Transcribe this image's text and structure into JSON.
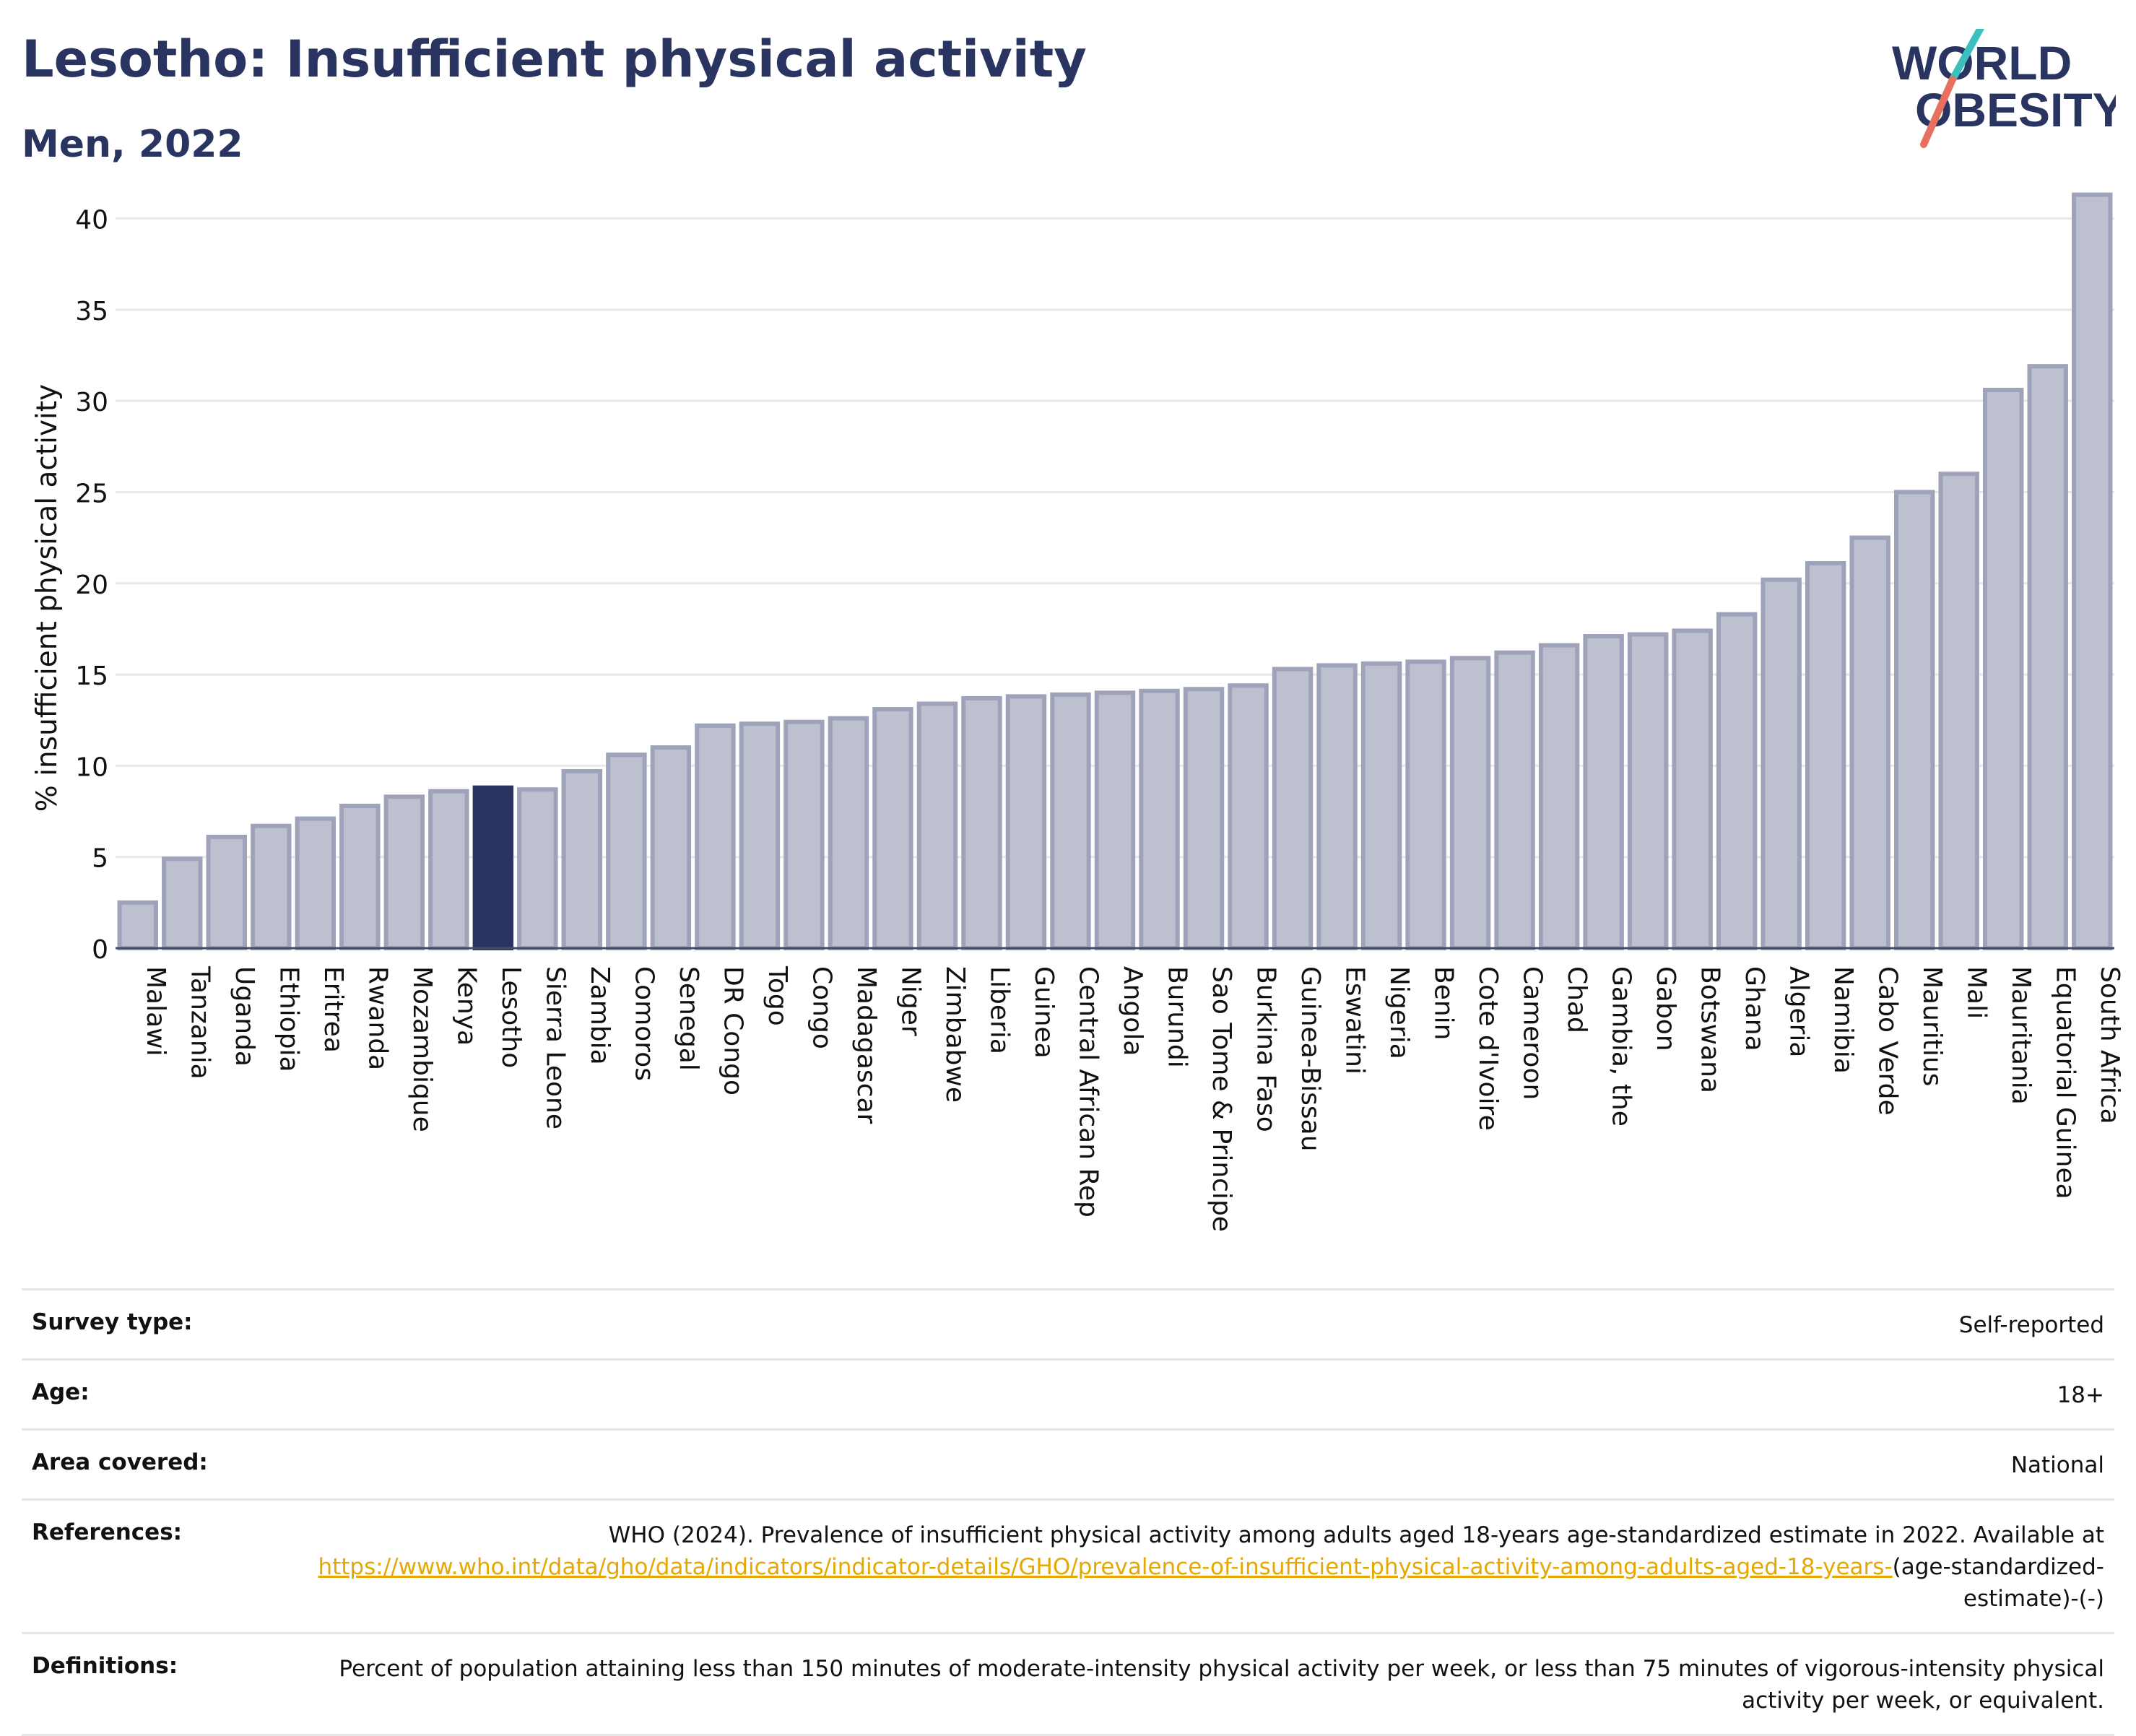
{
  "header": {
    "title": "Lesotho: Insufficient physical activity",
    "subtitle": "Men, 2022"
  },
  "logo": {
    "line1": "WORLD",
    "line2": "OBESITY"
  },
  "colors": {
    "title": "#2a3460",
    "bar": "#bcc0cf",
    "bar_stroke": "#9ea3ba",
    "highlight": "#2a3460",
    "link": "#e5a800",
    "logo_teal": "#3bbfbf",
    "logo_coral": "#e8705f"
  },
  "chart_data": {
    "type": "bar",
    "title": "Lesotho: Insufficient physical activity",
    "subtitle": "Men, 2022",
    "xlabel": "",
    "ylabel": "% insufficient physical activity",
    "ylim": [
      0,
      42
    ],
    "yticks": [
      0,
      5,
      10,
      15,
      20,
      25,
      30,
      35,
      40
    ],
    "grid": true,
    "legend": "none",
    "highlight": "Lesotho",
    "categories": [
      "Malawi",
      "Tanzania",
      "Uganda",
      "Ethiopia",
      "Eritrea",
      "Rwanda",
      "Mozambique",
      "Kenya",
      "Lesotho",
      "Sierra Leone",
      "Zambia",
      "Comoros",
      "Senegal",
      "DR Congo",
      "Togo",
      "Congo",
      "Madagascar",
      "Niger",
      "Zimbabwe",
      "Liberia",
      "Guinea",
      "Central African Rep",
      "Angola",
      "Burundi",
      "Sao Tome & Principe",
      "Burkina Faso",
      "Guinea-Bissau",
      "Eswatini",
      "Nigeria",
      "Benin",
      "Cote d'Ivoire",
      "Cameroon",
      "Chad",
      "Gambia, the",
      "Gabon",
      "Botswana",
      "Ghana",
      "Algeria",
      "Namibia",
      "Cabo Verde",
      "Mauritius",
      "Mali",
      "Mauritania",
      "Equatorial Guinea",
      "South Africa"
    ],
    "values": [
      2.5,
      4.9,
      6.1,
      6.7,
      7.1,
      7.8,
      8.3,
      8.6,
      8.8,
      8.7,
      9.7,
      10.6,
      11.0,
      12.2,
      12.3,
      12.4,
      12.6,
      13.1,
      13.4,
      13.7,
      13.8,
      13.9,
      14.0,
      14.1,
      14.2,
      14.4,
      15.3,
      15.5,
      15.6,
      15.7,
      15.9,
      16.2,
      16.6,
      17.1,
      17.2,
      17.4,
      18.3,
      20.2,
      21.1,
      22.5,
      25.0,
      26.0,
      30.6,
      31.9,
      41.3
    ]
  },
  "details": {
    "survey_type": {
      "label": "Survey type:",
      "value": "Self-reported"
    },
    "age": {
      "label": "Age:",
      "value": "18+"
    },
    "area": {
      "label": "Area covered:",
      "value": "National"
    },
    "references": {
      "label": "References:",
      "text": "WHO (2024). Prevalence of insufficient physical activity among adults aged 18-years age-standardized estimate in 2022. Available at",
      "link": "https://www.who.int/data/gho/data/indicators/indicator-details/GHO/prevalence-of-insufficient-physical-activity-among-adults-aged-18-years-",
      "suffix": "(age-standardized-estimate)-(-)"
    },
    "definitions": {
      "label": "Definitions:",
      "value": "Percent of population attaining less than 150 minutes of moderate-intensity physical activity per week, or less than 75 minutes of vigorous-intensity physical activity per week, or equivalent."
    }
  }
}
